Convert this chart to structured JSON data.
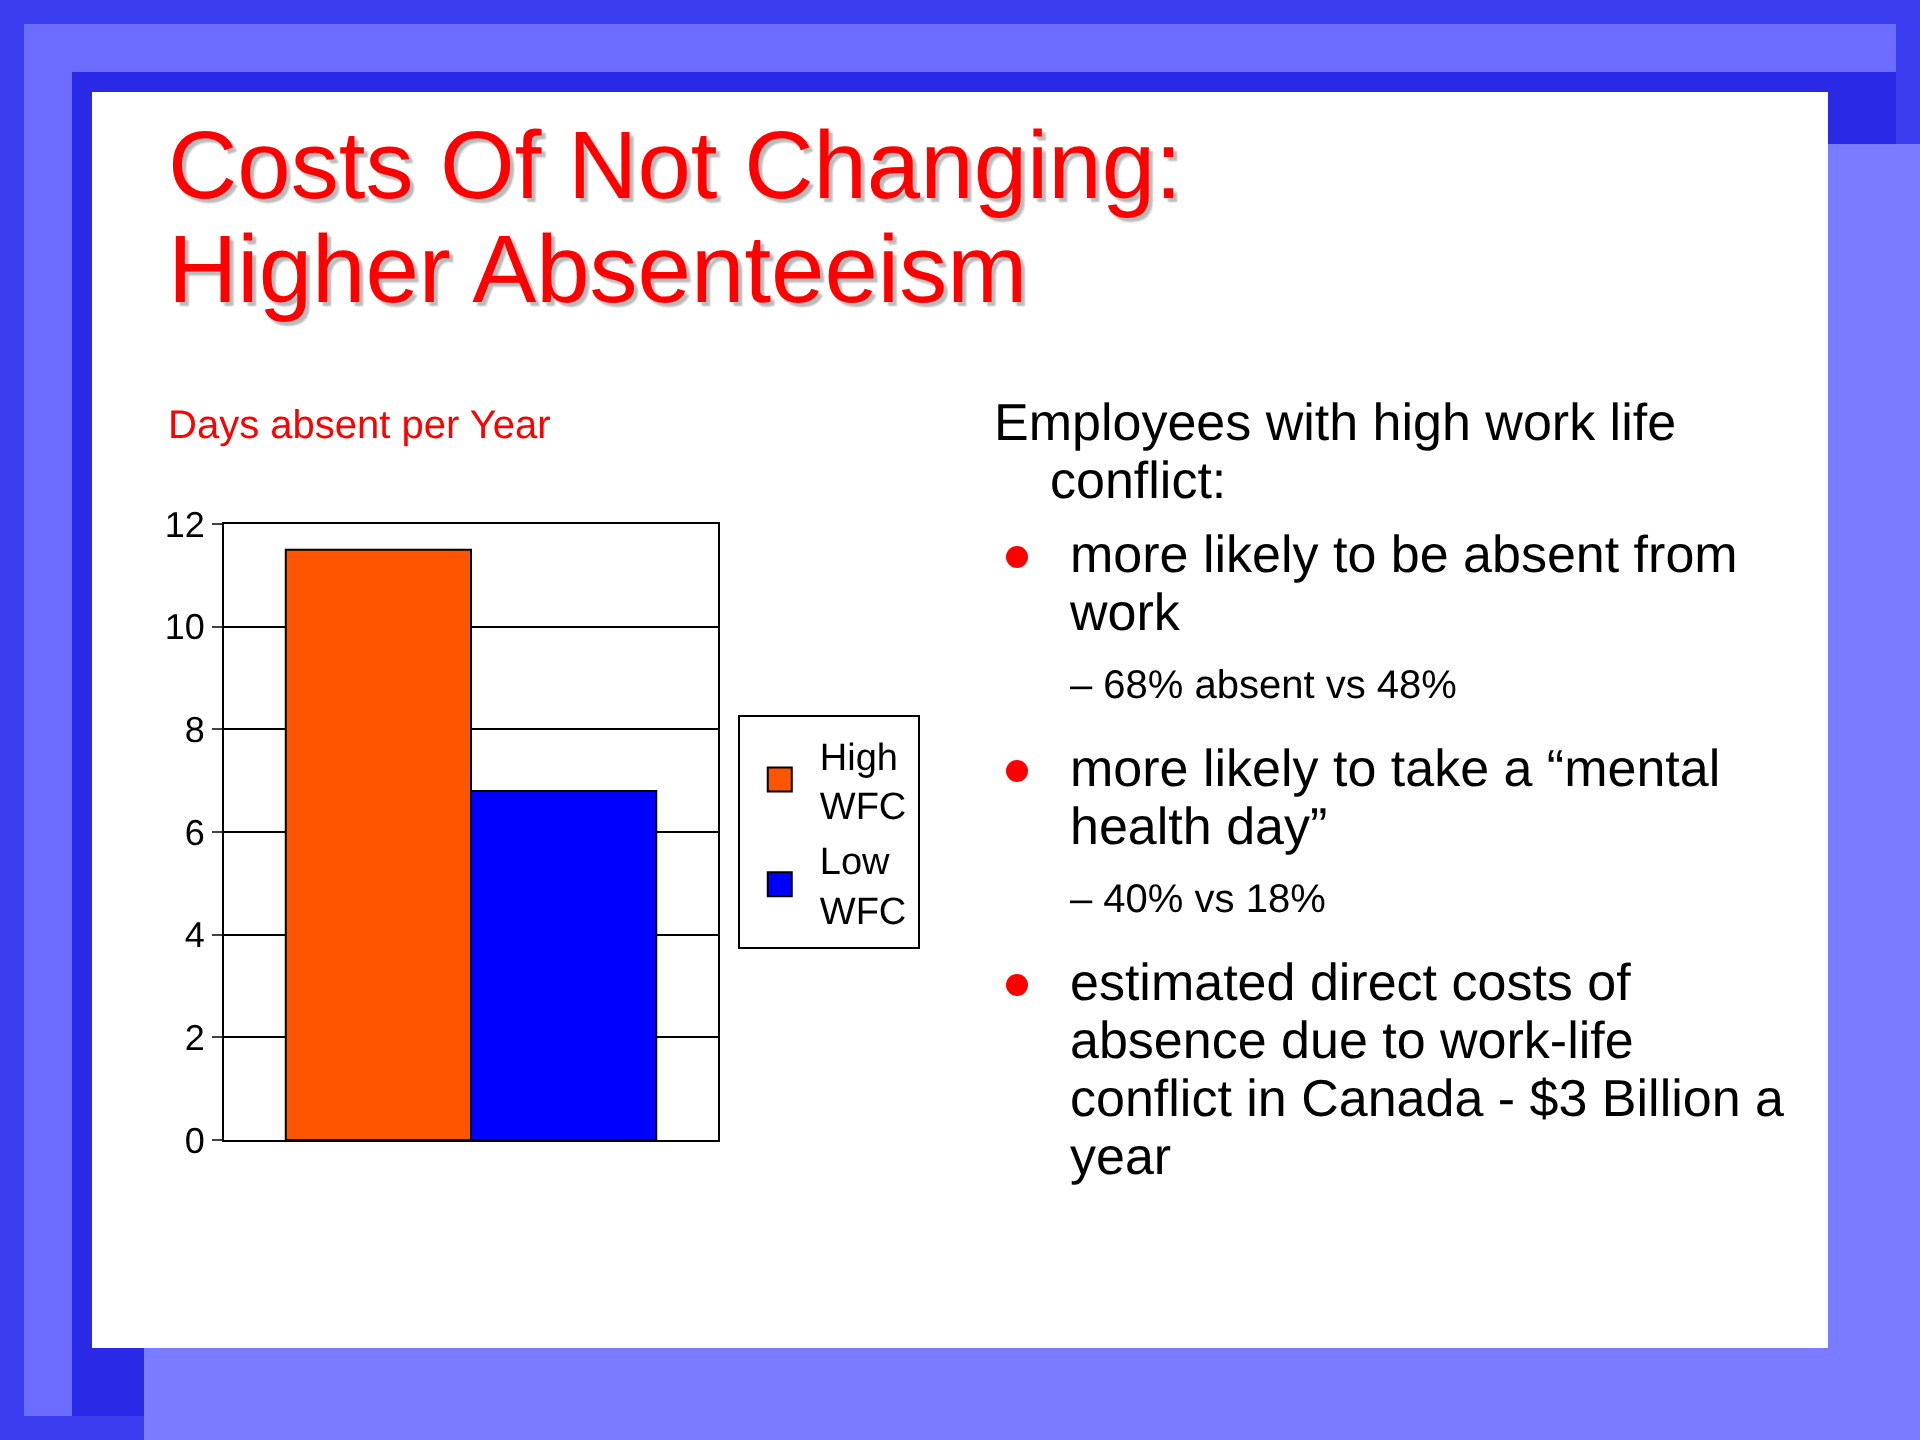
{
  "chart_data": {
    "type": "bar",
    "title": "Costs Of Not Changing:\nHigher Absenteeism",
    "subtitle": "Days absent per Year",
    "categories": [
      null
    ],
    "series": [
      {
        "name": "High\nWFC",
        "color": "#ff5500",
        "values": [
          11.5
        ]
      },
      {
        "name": "Low\nWFC",
        "color": "#0000ff",
        "values": [
          6.8
        ]
      }
    ],
    "ylim": [
      0,
      12
    ],
    "yticks": [
      0,
      2,
      4,
      6,
      8,
      10,
      12
    ],
    "grid": "y",
    "legend": "right",
    "annotations": [
      "Employees with high work life conflict:",
      "more likely to be absent from work",
      "– 68% absent vs 48%",
      "more likely to take a “mental health day”",
      "– 40% vs 18%",
      "estimated direct costs of absence due to work-life conflict in Canada  - $3 Billion a year"
    ]
  }
}
